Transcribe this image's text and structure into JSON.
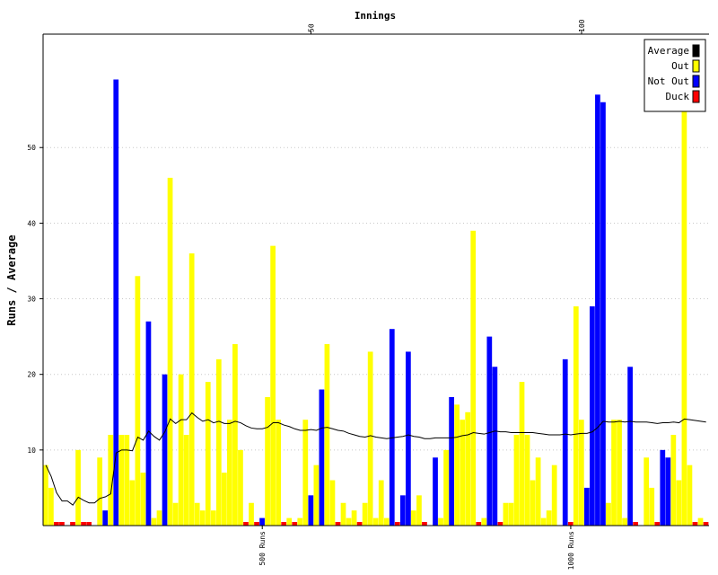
{
  "chart_data": {
    "type": "bar",
    "title": "Innings",
    "ylabel": "Runs / Average",
    "ylim": [
      0,
      65
    ],
    "yticks": [
      10,
      20,
      30,
      40,
      50
    ],
    "innings_ticks": [
      {
        "value": 50,
        "label": "50"
      },
      {
        "value": 100,
        "label": "100"
      }
    ],
    "cumulative_run_ticks": [
      {
        "innings": 41,
        "label": "500 Runs"
      },
      {
        "innings": 98,
        "label": "1000 Runs"
      }
    ],
    "grid": true,
    "legend": {
      "placement": "top-right",
      "entries": [
        {
          "label": "Average",
          "color": "#000000"
        },
        {
          "label": "Out",
          "color": "#ffff00"
        },
        {
          "label": "Not Out",
          "color": "#0000ff"
        },
        {
          "label": "Duck",
          "color": "#ff0000"
        }
      ]
    },
    "innings": [
      {
        "n": 1,
        "runs": 8,
        "status": "out"
      },
      {
        "n": 2,
        "runs": 5,
        "status": "out"
      },
      {
        "n": 3,
        "runs": 0,
        "status": "duck"
      },
      {
        "n": 4,
        "runs": 0,
        "status": "duck"
      },
      {
        "n": 5,
        "runs": 0,
        "status": "not_out"
      },
      {
        "n": 6,
        "runs": 0,
        "status": "duck"
      },
      {
        "n": 7,
        "runs": 10,
        "status": "out"
      },
      {
        "n": 8,
        "runs": 0,
        "status": "duck"
      },
      {
        "n": 9,
        "runs": 0,
        "status": "duck"
      },
      {
        "n": 10,
        "runs": 0,
        "status": "not_out"
      },
      {
        "n": 11,
        "runs": 9,
        "status": "out"
      },
      {
        "n": 12,
        "runs": 2,
        "status": "not_out"
      },
      {
        "n": 13,
        "runs": 12,
        "status": "out"
      },
      {
        "n": 14,
        "runs": 59,
        "status": "not_out"
      },
      {
        "n": 15,
        "runs": 12,
        "status": "out"
      },
      {
        "n": 16,
        "runs": 12,
        "status": "out"
      },
      {
        "n": 17,
        "runs": 6,
        "status": "out"
      },
      {
        "n": 18,
        "runs": 33,
        "status": "out"
      },
      {
        "n": 19,
        "runs": 7,
        "status": "out"
      },
      {
        "n": 20,
        "runs": 27,
        "status": "not_out"
      },
      {
        "n": 21,
        "runs": 1,
        "status": "out"
      },
      {
        "n": 22,
        "runs": 2,
        "status": "out"
      },
      {
        "n": 23,
        "runs": 20,
        "status": "not_out"
      },
      {
        "n": 24,
        "runs": 46,
        "status": "out"
      },
      {
        "n": 25,
        "runs": 3,
        "status": "out"
      },
      {
        "n": 26,
        "runs": 20,
        "status": "out"
      },
      {
        "n": 27,
        "runs": 12,
        "status": "out"
      },
      {
        "n": 28,
        "runs": 36,
        "status": "out"
      },
      {
        "n": 29,
        "runs": 3,
        "status": "out"
      },
      {
        "n": 30,
        "runs": 2,
        "status": "out"
      },
      {
        "n": 31,
        "runs": 19,
        "status": "out"
      },
      {
        "n": 32,
        "runs": 2,
        "status": "out"
      },
      {
        "n": 33,
        "runs": 22,
        "status": "out"
      },
      {
        "n": 34,
        "runs": 7,
        "status": "out"
      },
      {
        "n": 35,
        "runs": 14,
        "status": "out"
      },
      {
        "n": 36,
        "runs": 24,
        "status": "out"
      },
      {
        "n": 37,
        "runs": 10,
        "status": "out"
      },
      {
        "n": 38,
        "runs": 0,
        "status": "duck"
      },
      {
        "n": 39,
        "runs": 3,
        "status": "out"
      },
      {
        "n": 40,
        "runs": 0,
        "status": "duck"
      },
      {
        "n": 41,
        "runs": 1,
        "status": "not_out"
      },
      {
        "n": 42,
        "runs": 17,
        "status": "out"
      },
      {
        "n": 43,
        "runs": 37,
        "status": "out"
      },
      {
        "n": 44,
        "runs": 14,
        "status": "out"
      },
      {
        "n": 45,
        "runs": 0,
        "status": "duck"
      },
      {
        "n": 46,
        "runs": 1,
        "status": "out"
      },
      {
        "n": 47,
        "runs": 0,
        "status": "duck"
      },
      {
        "n": 48,
        "runs": 1,
        "status": "out"
      },
      {
        "n": 49,
        "runs": 14,
        "status": "out"
      },
      {
        "n": 50,
        "runs": 4,
        "status": "not_out"
      },
      {
        "n": 51,
        "runs": 8,
        "status": "out"
      },
      {
        "n": 52,
        "runs": 18,
        "status": "not_out"
      },
      {
        "n": 53,
        "runs": 24,
        "status": "out"
      },
      {
        "n": 54,
        "runs": 6,
        "status": "out"
      },
      {
        "n": 55,
        "runs": 0,
        "status": "duck"
      },
      {
        "n": 56,
        "runs": 3,
        "status": "out"
      },
      {
        "n": 57,
        "runs": 1,
        "status": "out"
      },
      {
        "n": 58,
        "runs": 2,
        "status": "out"
      },
      {
        "n": 59,
        "runs": 0,
        "status": "duck"
      },
      {
        "n": 60,
        "runs": 3,
        "status": "out"
      },
      {
        "n": 61,
        "runs": 23,
        "status": "out"
      },
      {
        "n": 62,
        "runs": 1,
        "status": "out"
      },
      {
        "n": 63,
        "runs": 6,
        "status": "out"
      },
      {
        "n": 64,
        "runs": 1,
        "status": "out"
      },
      {
        "n": 65,
        "runs": 26,
        "status": "not_out"
      },
      {
        "n": 66,
        "runs": 0,
        "status": "duck"
      },
      {
        "n": 67,
        "runs": 4,
        "status": "not_out"
      },
      {
        "n": 68,
        "runs": 23,
        "status": "not_out"
      },
      {
        "n": 69,
        "runs": 2,
        "status": "out"
      },
      {
        "n": 70,
        "runs": 4,
        "status": "out"
      },
      {
        "n": 71,
        "runs": 0,
        "status": "duck"
      },
      {
        "n": 72,
        "runs": 0,
        "status": "not_out"
      },
      {
        "n": 73,
        "runs": 9,
        "status": "not_out"
      },
      {
        "n": 74,
        "runs": 1,
        "status": "out"
      },
      {
        "n": 75,
        "runs": 10,
        "status": "out"
      },
      {
        "n": 76,
        "runs": 17,
        "status": "not_out"
      },
      {
        "n": 77,
        "runs": 16,
        "status": "out"
      },
      {
        "n": 78,
        "runs": 14,
        "status": "out"
      },
      {
        "n": 79,
        "runs": 15,
        "status": "out"
      },
      {
        "n": 80,
        "runs": 39,
        "status": "out"
      },
      {
        "n": 81,
        "runs": 0,
        "status": "duck"
      },
      {
        "n": 82,
        "runs": 1,
        "status": "out"
      },
      {
        "n": 83,
        "runs": 25,
        "status": "not_out"
      },
      {
        "n": 84,
        "runs": 21,
        "status": "not_out"
      },
      {
        "n": 85,
        "runs": 0,
        "status": "duck"
      },
      {
        "n": 86,
        "runs": 3,
        "status": "out"
      },
      {
        "n": 87,
        "runs": 3,
        "status": "out"
      },
      {
        "n": 88,
        "runs": 12,
        "status": "out"
      },
      {
        "n": 89,
        "runs": 19,
        "status": "out"
      },
      {
        "n": 90,
        "runs": 12,
        "status": "out"
      },
      {
        "n": 91,
        "runs": 6,
        "status": "out"
      },
      {
        "n": 92,
        "runs": 9,
        "status": "out"
      },
      {
        "n": 93,
        "runs": 1,
        "status": "out"
      },
      {
        "n": 94,
        "runs": 2,
        "status": "out"
      },
      {
        "n": 95,
        "runs": 8,
        "status": "out"
      },
      {
        "n": 96,
        "runs": 0,
        "status": "not_out"
      },
      {
        "n": 97,
        "runs": 22,
        "status": "not_out"
      },
      {
        "n": 98,
        "runs": 0,
        "status": "duck"
      },
      {
        "n": 99,
        "runs": 29,
        "status": "out"
      },
      {
        "n": 100,
        "runs": 14,
        "status": "out"
      },
      {
        "n": 101,
        "runs": 5,
        "status": "not_out"
      },
      {
        "n": 102,
        "runs": 29,
        "status": "not_out"
      },
      {
        "n": 103,
        "runs": 57,
        "status": "not_out"
      },
      {
        "n": 104,
        "runs": 56,
        "status": "not_out"
      },
      {
        "n": 105,
        "runs": 3,
        "status": "out"
      },
      {
        "n": 106,
        "runs": 14,
        "status": "out"
      },
      {
        "n": 107,
        "runs": 14,
        "status": "out"
      },
      {
        "n": 108,
        "runs": 1,
        "status": "out"
      },
      {
        "n": 109,
        "runs": 21,
        "status": "not_out"
      },
      {
        "n": 110,
        "runs": 0,
        "status": "duck"
      },
      {
        "n": 111,
        "runs": 0,
        "status": "not_out"
      },
      {
        "n": 112,
        "runs": 9,
        "status": "out"
      },
      {
        "n": 113,
        "runs": 5,
        "status": "out"
      },
      {
        "n": 114,
        "runs": 0,
        "status": "duck"
      },
      {
        "n": 115,
        "runs": 10,
        "status": "not_out"
      },
      {
        "n": 116,
        "runs": 9,
        "status": "not_out"
      },
      {
        "n": 117,
        "runs": 12,
        "status": "out"
      },
      {
        "n": 118,
        "runs": 6,
        "status": "out"
      },
      {
        "n": 119,
        "runs": 55,
        "status": "out"
      },
      {
        "n": 120,
        "runs": 8,
        "status": "out"
      },
      {
        "n": 121,
        "runs": 0,
        "status": "duck"
      },
      {
        "n": 122,
        "runs": 1,
        "status": "out"
      },
      {
        "n": 123,
        "runs": 0,
        "status": "duck"
      }
    ],
    "average": [
      8.0,
      6.5,
      4.33,
      3.25,
      3.25,
      2.71,
      3.75,
      3.33,
      3.0,
      3.0,
      3.6,
      3.8,
      4.2,
      9.6,
      10.0,
      10.0,
      9.9,
      11.7,
      11.3,
      12.5,
      11.8,
      11.3,
      12.4,
      14.1,
      13.5,
      14.0,
      14.0,
      14.9,
      14.3,
      13.8,
      14.0,
      13.6,
      13.8,
      13.5,
      13.5,
      13.8,
      13.6,
      13.2,
      12.9,
      12.8,
      12.8,
      13.0,
      13.6,
      13.6,
      13.3,
      13.1,
      12.8,
      12.6,
      12.6,
      12.7,
      12.6,
      12.9,
      13.0,
      12.8,
      12.6,
      12.5,
      12.2,
      12.0,
      11.8,
      11.7,
      11.9,
      11.7,
      11.6,
      11.5,
      11.6,
      11.7,
      11.8,
      12.0,
      11.8,
      11.7,
      11.5,
      11.5,
      11.6,
      11.6,
      11.6,
      11.6,
      11.7,
      11.9,
      12.0,
      12.3,
      12.2,
      12.1,
      12.3,
      12.5,
      12.4,
      12.4,
      12.3,
      12.3,
      12.3,
      12.3,
      12.3,
      12.2,
      12.1,
      12.0,
      12.0,
      12.0,
      12.1,
      12.0,
      12.1,
      12.2,
      12.2,
      12.4,
      13.0,
      13.8,
      13.7,
      13.7,
      13.8,
      13.7,
      13.8,
      13.7,
      13.7,
      13.7,
      13.6,
      13.5,
      13.6,
      13.6,
      13.7,
      13.6,
      14.1,
      14.0,
      13.9,
      13.8,
      13.7
    ]
  }
}
